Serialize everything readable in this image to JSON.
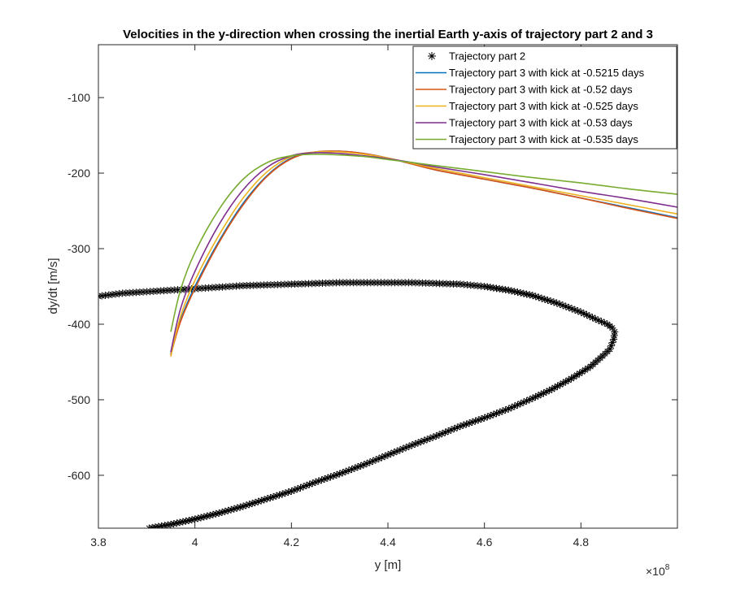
{
  "chart_data": {
    "type": "line",
    "title": "Velocities in the y-direction when crossing the inertial Earth y-axis of trajectory part 2 and 3",
    "xlabel": "y [m]",
    "ylabel": "dy/dt [m/s]",
    "x_exponent_label": "×10",
    "x_exponent_power": "8",
    "x_scale": 100000000,
    "xlim": [
      3.8,
      5.0
    ],
    "ylim": [
      -670,
      -30
    ],
    "x_ticks": [
      3.8,
      4.0,
      4.2,
      4.4,
      4.6,
      4.8
    ],
    "x_tick_labels": [
      "3.8",
      "4",
      "4.2",
      "4.4",
      "4.6",
      "4.8"
    ],
    "y_ticks": [
      -100,
      -200,
      -300,
      -400,
      -500,
      -600
    ],
    "y_tick_labels": [
      "-100",
      "-200",
      "-300",
      "-400",
      "-500",
      "-600"
    ],
    "grid": false,
    "box": true,
    "legend_location": "top-right",
    "series": [
      {
        "name": "Trajectory part 2",
        "color": "#000000",
        "marker": "asterisk",
        "style": "markers",
        "x": [
          3.8,
          3.85,
          3.9,
          3.95,
          4.0,
          4.05,
          4.1,
          4.15,
          4.2,
          4.25,
          4.3,
          4.35,
          4.4,
          4.45,
          4.5,
          4.55,
          4.6,
          4.65,
          4.7,
          4.75,
          4.8,
          4.83,
          4.855,
          4.865,
          4.87,
          4.868,
          4.86,
          4.845,
          4.82,
          4.78,
          4.74,
          4.7,
          4.65,
          4.6,
          4.55,
          4.5,
          4.45,
          4.4,
          4.35,
          4.3,
          4.25,
          4.2,
          4.15,
          4.1,
          4.05,
          4.0,
          3.95,
          3.905
        ],
        "y": [
          -363,
          -359,
          -357,
          -355,
          -353,
          -351,
          -349,
          -348,
          -347,
          -346,
          -345,
          -345,
          -345,
          -345,
          -346,
          -347,
          -350,
          -355,
          -362,
          -372,
          -384,
          -393,
          -400,
          -405,
          -410,
          -420,
          -433,
          -442,
          -456,
          -472,
          -486,
          -498,
          -512,
          -524,
          -535,
          -548,
          -560,
          -573,
          -586,
          -598,
          -609,
          -621,
          -631,
          -641,
          -650,
          -658,
          -665,
          -670
        ]
      },
      {
        "name": "Trajectory part 3 with kick at -0.5215 days",
        "color": "#0072BD",
        "style": "line",
        "x": [
          3.95,
          3.97,
          4.0,
          4.05,
          4.1,
          4.15,
          4.2,
          4.25,
          4.3,
          4.35,
          4.4,
          4.45,
          4.5,
          4.6,
          4.7,
          4.8,
          4.9,
          5.0
        ],
        "y": [
          -440,
          -395,
          -350,
          -290,
          -240,
          -203,
          -180,
          -172,
          -171,
          -174,
          -180,
          -188,
          -196,
          -208,
          -220,
          -233,
          -246,
          -259
        ]
      },
      {
        "name": "Trajectory part 3 with kick at -0.52 days",
        "color": "#D95319",
        "style": "line",
        "x": [
          3.95,
          3.97,
          4.0,
          4.05,
          4.1,
          4.15,
          4.2,
          4.25,
          4.3,
          4.35,
          4.4,
          4.45,
          4.5,
          4.6,
          4.7,
          4.8,
          4.9,
          5.0
        ],
        "y": [
          -441,
          -397,
          -353,
          -292,
          -242,
          -204,
          -181,
          -172,
          -171,
          -174,
          -180,
          -188,
          -196,
          -208,
          -220,
          -233,
          -247,
          -260
        ]
      },
      {
        "name": "Trajectory part 3 with kick at -0.525 days",
        "color": "#EDB120",
        "style": "line",
        "x": [
          3.95,
          3.97,
          4.0,
          4.05,
          4.1,
          4.15,
          4.2,
          4.25,
          4.3,
          4.35,
          4.4,
          4.45,
          4.5,
          4.6,
          4.7,
          4.8,
          4.9,
          5.0
        ],
        "y": [
          -443,
          -390,
          -342,
          -282,
          -233,
          -198,
          -178,
          -172,
          -172,
          -175,
          -180,
          -187,
          -194,
          -206,
          -218,
          -230,
          -242,
          -254
        ]
      },
      {
        "name": "Trajectory part 3 with kick at -0.53 days",
        "color": "#7E2F8E",
        "style": "line",
        "x": [
          3.95,
          3.97,
          4.0,
          4.05,
          4.1,
          4.15,
          4.2,
          4.25,
          4.3,
          4.35,
          4.4,
          4.45,
          4.5,
          4.6,
          4.7,
          4.8,
          4.9,
          5.0
        ],
        "y": [
          -437,
          -380,
          -330,
          -268,
          -222,
          -192,
          -177,
          -173,
          -174,
          -177,
          -181,
          -186,
          -192,
          -202,
          -213,
          -224,
          -234,
          -245
        ]
      },
      {
        "name": "Trajectory part 3 with kick at -0.535 days",
        "color": "#77AC30",
        "style": "line",
        "x": [
          3.95,
          3.97,
          4.0,
          4.05,
          4.1,
          4.15,
          4.2,
          4.25,
          4.3,
          4.35,
          4.4,
          4.45,
          4.5,
          4.6,
          4.7,
          4.8,
          4.9,
          5.0
        ],
        "y": [
          -410,
          -355,
          -305,
          -248,
          -208,
          -186,
          -177,
          -175,
          -176,
          -178,
          -182,
          -186,
          -190,
          -198,
          -206,
          -213,
          -221,
          -228
        ]
      }
    ]
  }
}
